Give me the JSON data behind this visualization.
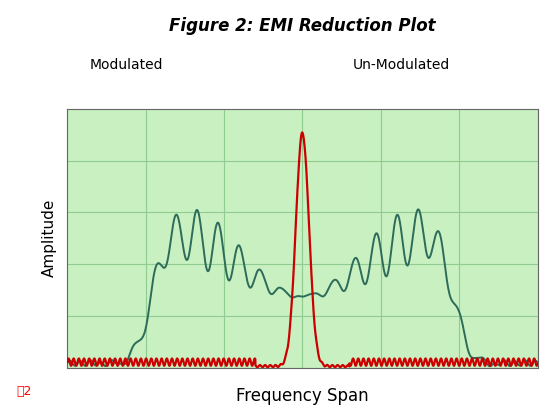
{
  "title": "Figure 2: EMI Reduction Plot",
  "xlabel": "Frequency Span",
  "ylabel": "Amplitude",
  "plot_bg_color": "#c8f0c0",
  "fig_bg_color": "#ffffff",
  "grid_color": "#90cc90",
  "modulated_color": "#2d6b5a",
  "unmodulated_color": "#cc0000",
  "legend_modulated": "Modulated",
  "legend_unmodulated": "Un-Modulated",
  "fig2_label": "图2",
  "xlim": [
    0,
    1000
  ],
  "ylim": [
    0,
    1.0
  ]
}
